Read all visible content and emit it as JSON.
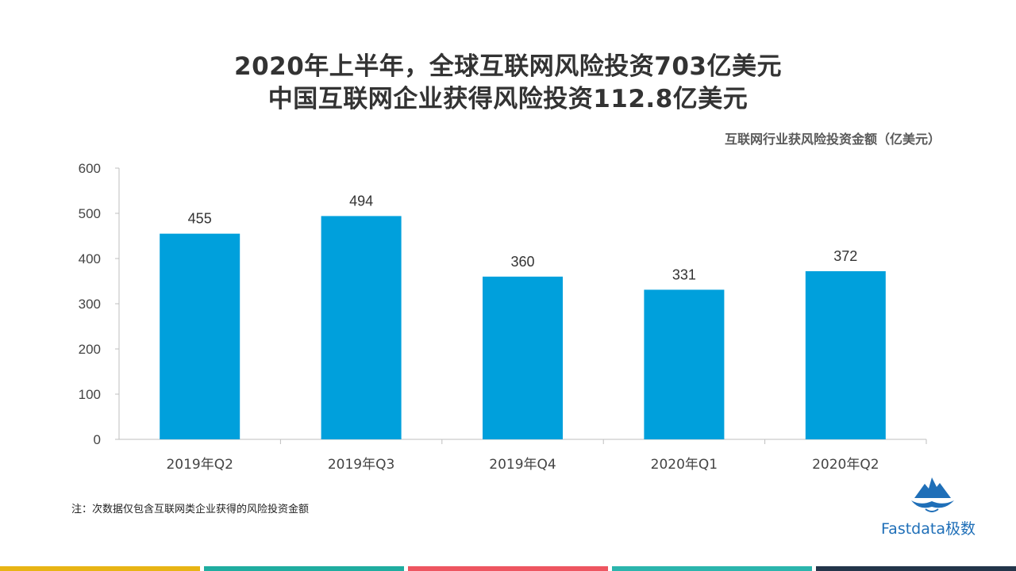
{
  "title_line1": "2020年上半年，全球互联网风险投资703亿美元",
  "title_line2": "中国互联网企业获得风险投资112.8亿美元",
  "chart_subtitle": "互联网行业获风险投资金额（亿美元）",
  "note": "注：次数据仅包含互联网类企业获得的风险投资金额",
  "logo_text": "Fastdata极数",
  "colors": {
    "bar": "#00a0dc",
    "accent_bars": [
      "#e8b414",
      "#1fada0",
      "#ee5560",
      "#2bb5ad",
      "#23354a"
    ]
  },
  "chart_data": {
    "type": "bar",
    "categories": [
      "2019年Q2",
      "2019年Q3",
      "2019年Q4",
      "2020年Q1",
      "2020年Q2"
    ],
    "values": [
      455,
      494,
      360,
      331,
      372
    ],
    "ylim": [
      0,
      600
    ],
    "yticks": [
      0,
      100,
      200,
      300,
      400,
      500,
      600
    ],
    "data_labels": true,
    "grid": false
  }
}
